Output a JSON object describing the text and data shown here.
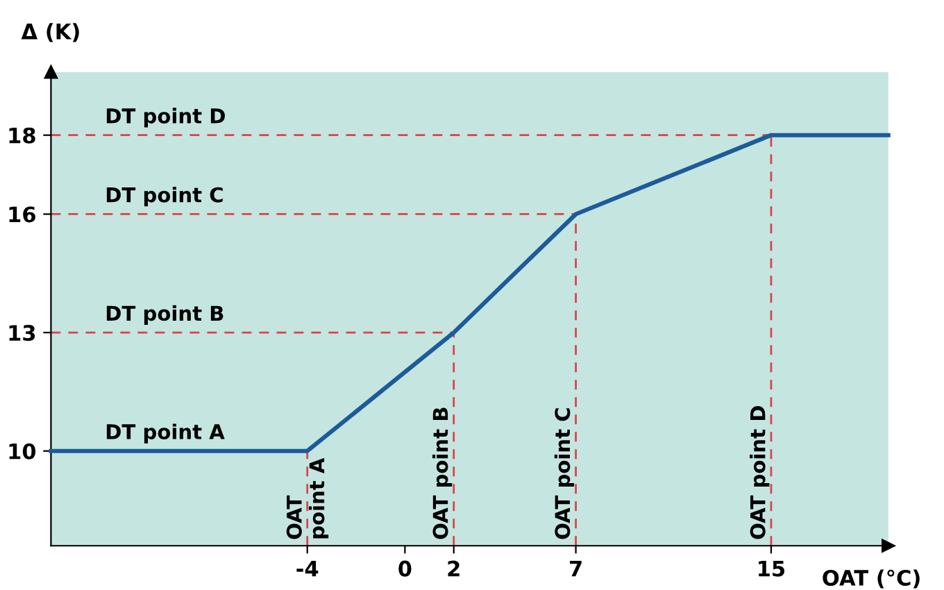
{
  "chart_data": {
    "type": "line",
    "xlabel": "OAT (°C)",
    "ylabel": "Δ (K)",
    "xlim": [
      -14.5,
      19.8
    ],
    "ylim": [
      7.6,
      19.6
    ],
    "xticks": [
      -4,
      0,
      2,
      7,
      15
    ],
    "yticks": [
      10,
      13,
      16,
      18
    ],
    "grid": false,
    "legend": false,
    "marker": "none",
    "line_style": "solid",
    "series": [
      {
        "color": "#1d5b9a",
        "x": [
          -14.5,
          -4,
          2,
          7,
          15,
          19.8
        ],
        "values": [
          10,
          10,
          13,
          16,
          18,
          18
        ]
      },
      {
        "color": "#d9434b",
        "line_style": "dashed",
        "x": [
          -14.5,
          2
        ],
        "values": [
          13,
          13
        ]
      },
      {
        "color": "#d9434b",
        "line_style": "dashed",
        "x": [
          -14.5,
          7
        ],
        "values": [
          16,
          16
        ]
      },
      {
        "color": "#d9434b",
        "line_style": "dashed",
        "x": [
          -14.5,
          15
        ],
        "values": [
          18,
          18
        ]
      },
      {
        "color": "#d9434b",
        "line_style": "dashed",
        "x": [
          -4,
          -4
        ],
        "values": [
          7.6,
          10
        ]
      },
      {
        "color": "#d9434b",
        "line_style": "dashed",
        "x": [
          2,
          2
        ],
        "values": [
          7.6,
          13
        ]
      },
      {
        "color": "#d9434b",
        "line_style": "dashed",
        "x": [
          7,
          7
        ],
        "values": [
          7.6,
          16
        ]
      },
      {
        "color": "#d9434b",
        "line_style": "dashed",
        "x": [
          15,
          15
        ],
        "values": [
          7.6,
          18
        ]
      }
    ],
    "annotations": [
      {
        "text": "DT point A",
        "x": -14.5,
        "y": 10
      },
      {
        "text": "DT point B",
        "x": -14.5,
        "y": 13
      },
      {
        "text": "DT point C",
        "x": -14.5,
        "y": 16
      },
      {
        "text": "DT point D",
        "x": -14.5,
        "y": 18
      },
      {
        "text": "OAT\npoint A",
        "x": -4,
        "y": 7.6
      },
      {
        "text": "OAT point B",
        "x": 2,
        "y": 7.6
      },
      {
        "text": "OAT point C",
        "x": 7,
        "y": 7.6
      },
      {
        "text": "OAT point D",
        "x": 15,
        "y": 7.6
      }
    ]
  }
}
